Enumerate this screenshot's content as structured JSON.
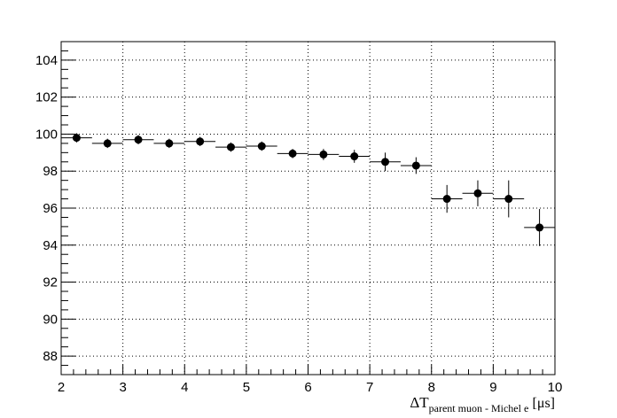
{
  "chart_data": {
    "type": "scatter",
    "title": "",
    "ylabel": "",
    "xlabel": {
      "main": "ΔT",
      "subscript": "parent muon - Michel e",
      "unit": "[μs]"
    },
    "xlim": [
      2,
      10
    ],
    "ylim": [
      87,
      105
    ],
    "xticks": [
      2,
      3,
      4,
      5,
      6,
      7,
      8,
      9,
      10
    ],
    "yticks": [
      88,
      90,
      92,
      94,
      96,
      98,
      100,
      102,
      104
    ],
    "grid": true,
    "legend": "none",
    "bin_width": 0.5,
    "points": [
      {
        "x": 2.25,
        "y": 99.8,
        "yerr": 0.25
      },
      {
        "x": 2.75,
        "y": 99.5,
        "yerr": 0.25
      },
      {
        "x": 3.25,
        "y": 99.7,
        "yerr": 0.25
      },
      {
        "x": 3.75,
        "y": 99.5,
        "yerr": 0.25
      },
      {
        "x": 4.25,
        "y": 99.6,
        "yerr": 0.25
      },
      {
        "x": 4.75,
        "y": 99.3,
        "yerr": 0.25
      },
      {
        "x": 5.25,
        "y": 99.35,
        "yerr": 0.25
      },
      {
        "x": 5.75,
        "y": 98.95,
        "yerr": 0.25
      },
      {
        "x": 6.25,
        "y": 98.9,
        "yerr": 0.3
      },
      {
        "x": 6.75,
        "y": 98.8,
        "yerr": 0.35
      },
      {
        "x": 7.25,
        "y": 98.5,
        "yerr": 0.5
      },
      {
        "x": 7.75,
        "y": 98.3,
        "yerr": 0.45
      },
      {
        "x": 8.25,
        "y": 96.5,
        "yerr": 0.75
      },
      {
        "x": 8.75,
        "y": 96.8,
        "yerr": 0.7
      },
      {
        "x": 9.25,
        "y": 96.5,
        "yerr": 1.0
      },
      {
        "x": 9.75,
        "y": 94.95,
        "yerr": 1.0
      }
    ],
    "colors": {
      "marker": "#000000",
      "grid": "#000000",
      "frame": "#000000"
    }
  }
}
